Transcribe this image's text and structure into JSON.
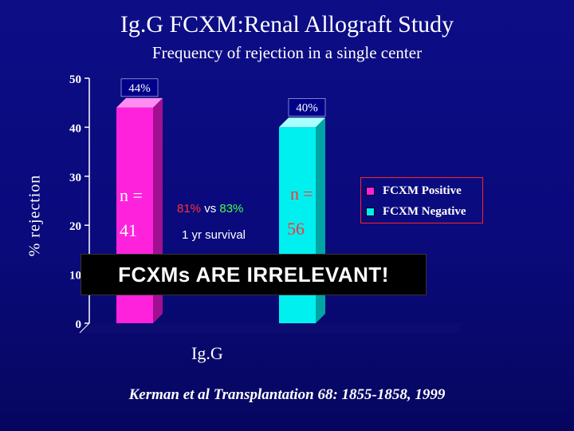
{
  "slide": {
    "title": "Ig.G FCXM:Renal Allograft Study",
    "subtitle": "Frequency of rejection in a single center",
    "ylabel": "% rejection",
    "xlabel": "Ig.G",
    "n_positive_label": "n =",
    "n_positive_value": "41",
    "n_negative_label": "n =",
    "n_negative_value": "56",
    "survival_pos": "81%",
    "survival_vs": "vs",
    "survival_neg": "83%",
    "survival_label": "1 yr survival",
    "callout": "FCXMs ARE IRRELEVANT!",
    "citation": "Kerman et al  Transplantation 68: 1855-1858, 1999",
    "colors": {
      "positive": "#ff22dd",
      "negative": "#00f0f0",
      "pct_green": "#44ff44",
      "pct_red": "#ff3333",
      "axis": "#ffffff"
    }
  },
  "chart_data": {
    "type": "bar",
    "categories": [
      "Ig.G"
    ],
    "series": [
      {
        "name": "FCXM Positive",
        "values": [
          44
        ],
        "data_label": "44%"
      },
      {
        "name": "FCXM Negative",
        "values": [
          40
        ],
        "data_label": "40%"
      }
    ],
    "ylabel": "% rejection",
    "xlabel": "Ig.G",
    "ylim": [
      0,
      50
    ],
    "yticks": [
      "0",
      "10",
      "20",
      "30",
      "40",
      "50"
    ],
    "legend_position": "right",
    "bar_style": "3d"
  }
}
